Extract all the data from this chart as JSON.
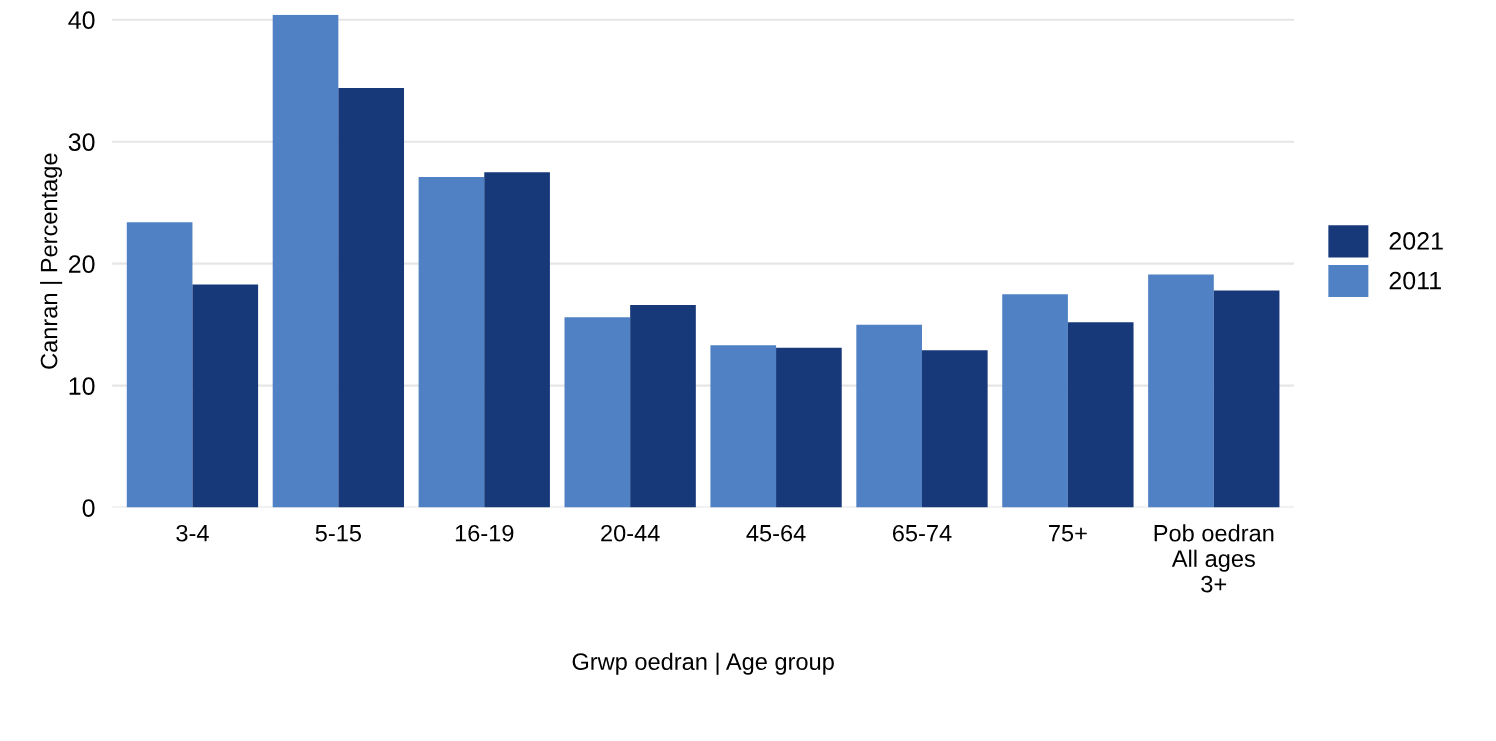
{
  "chart_data": {
    "type": "bar",
    "xlabel": "Grwp oedran | Age group",
    "ylabel": "Canran | Percentage",
    "categories": [
      "3-4",
      "5-15",
      "16-19",
      "20-44",
      "45-64",
      "65-74",
      "75+",
      "Pob oedran\nAll ages\n3+"
    ],
    "series": [
      {
        "name": "2011",
        "color": "#4f81c4",
        "values": [
          23.4,
          40.4,
          27.1,
          15.6,
          13.3,
          15.0,
          17.5,
          19.1
        ]
      },
      {
        "name": "2021",
        "color": "#17397a",
        "values": [
          18.3,
          34.4,
          27.5,
          16.6,
          13.1,
          12.9,
          15.2,
          17.8
        ]
      }
    ],
    "ylim": [
      0,
      40.4
    ],
    "yticks": [
      0,
      10,
      20,
      30,
      40
    ],
    "grid": "y",
    "legend": "right"
  }
}
